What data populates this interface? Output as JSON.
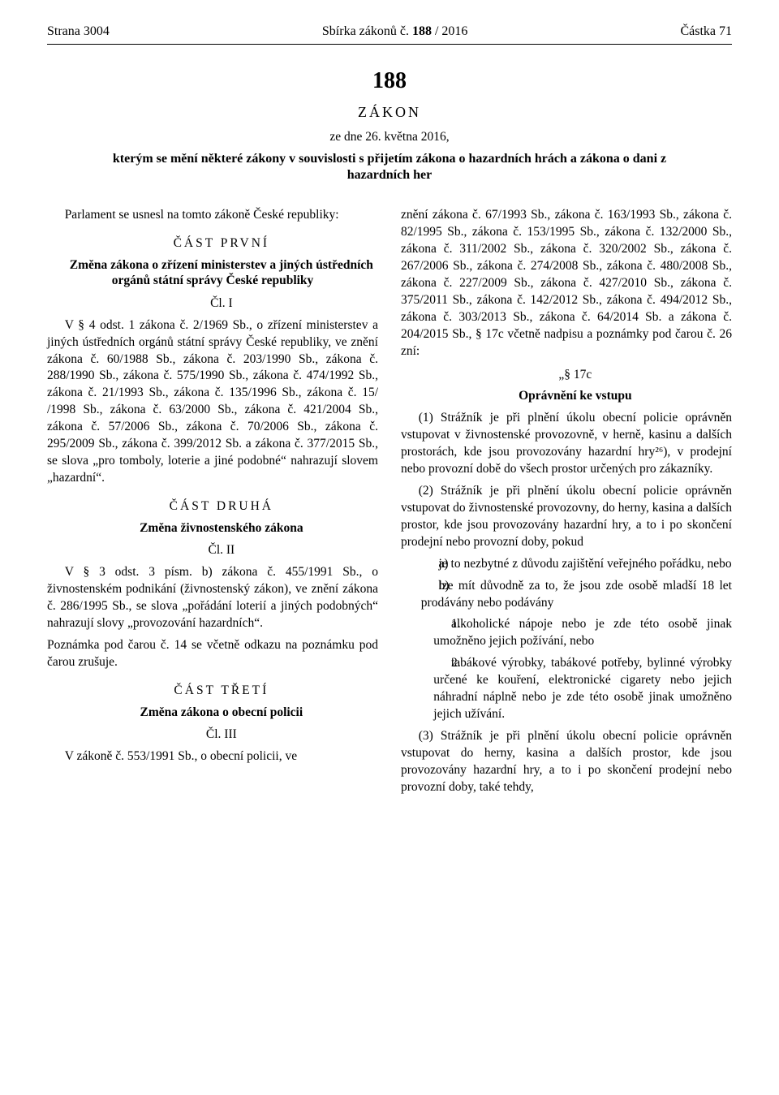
{
  "header": {
    "page_label": "Strana 3004",
    "center": "Sbírka zákonů č. ",
    "center_num": "188",
    "center_year": " / 2016",
    "issue": "Částka 71"
  },
  "title": {
    "number": "188",
    "type": "ZÁKON",
    "date": "ze dne 26. května 2016,",
    "title": "kterým se mění některé zákony v souvislosti s přijetím zákona o hazardních hrách a zákona o dani z hazardních her"
  },
  "left": {
    "preamble": "Parlament se usnesl na tomto zákoně České republiky:",
    "part1_heading": "ČÁST PRVNÍ",
    "part1_subtitle": "Změna zákona o zřízení ministerstev a jiných ústředních orgánů státní správy České republiky",
    "art1": "Čl. I",
    "p1": "V § 4 odst. 1 zákona č. 2/1969 Sb., o zřízení ministerstev a jiných ústředních orgánů státní správy České republiky, ve znění zákona č. 60/1988 Sb., zákona č. 203/1990 Sb., zákona č. 288/1990 Sb., zákona č. 575/1990 Sb., zákona č. 474/1992 Sb., zákona č. 21/1993 Sb., zákona č. 135/1996 Sb., zákona č. 15/ /1998 Sb., zákona č. 63/2000 Sb., zákona č. 421/2004 Sb., zákona č. 57/2006 Sb., zákona č. 70/2006 Sb., zákona č. 295/2009 Sb., zákona č. 399/2012 Sb. a zákona č. 377/2015 Sb., se slova „pro tomboly, loterie a jiné podobné“ nahrazují slovem „hazardní“.",
    "part2_heading": "ČÁST DRUHÁ",
    "part2_subtitle": "Změna živnostenského zákona",
    "art2": "Čl. II",
    "p2": "V § 3 odst. 3 písm. b) zákona č. 455/1991 Sb., o živnostenském podnikání (živnostenský zákon), ve znění zákona č. 286/1995 Sb., se slova „pořádání loterií a jiných podobných“ nahrazují slovy „provozování hazardních“.",
    "p3": "Poznámka pod čarou č. 14 se včetně odkazu na poznámku pod čarou zrušuje.",
    "part3_heading": "ČÁST TŘETÍ",
    "part3_subtitle": "Změna zákona o obecní policii",
    "art3": "Čl. III",
    "p4": "V zákoně č. 553/1991 Sb., o obecní policii, ve"
  },
  "right": {
    "p1": "znění zákona č. 67/1993 Sb., zákona č. 163/1993 Sb., zákona č. 82/1995 Sb., zákona č. 153/1995 Sb., zákona č. 132/2000 Sb., zákona č. 311/2002 Sb., zákona č. 320/2002 Sb., zákona č. 267/2006 Sb., zákona č. 274/2008 Sb., zákona č. 480/2008 Sb., zákona č. 227/2009 Sb., zákona č. 427/2010 Sb., zákona č. 375/2011 Sb., zákona č. 142/2012 Sb., zákona č. 494/2012 Sb., zákona č. 303/2013 Sb., zákona č. 64/2014 Sb. a zákona č. 204/2015 Sb., § 17c včetně nadpisu a poznámky pod čarou č. 26 zní:",
    "sec_head": "„§ 17c",
    "sec_title": "Oprávnění ke vstupu",
    "p2": "(1) Strážník je při plnění úkolu obecní policie oprávněn vstupovat v živnostenské provozovně, v herně, kasinu a dalších prostorách, kde jsou provozovány hazardní hry²⁶), v prodejní nebo provozní době do všech prostor určených pro zákazníky.",
    "p3": "(2) Strážník je při plnění úkolu obecní policie oprávněn vstupovat do živnostenské provozovny, do herny, kasina a dalších prostor, kde jsou provozovány hazardní hry, a to i po skončení prodejní nebo provozní doby, pokud",
    "a_marker": "a)",
    "a_text": "je to nezbytné z důvodu zajištění veřejného pořádku, nebo",
    "b_marker": "b)",
    "b_text": "lze mít důvodně za to, že jsou zde osobě mladší 18 let prodávány nebo podávány",
    "n1_marker": "1.",
    "n1_text": "alkoholické nápoje nebo je zde této osobě jinak umožněno jejich požívání, nebo",
    "n2_marker": "2.",
    "n2_text": "tabákové výrobky, tabákové potřeby, bylinné výrobky určené ke kouření, elektronické cigarety nebo jejich náhradní náplně nebo je zde této osobě jinak umožněno jejich užívání.",
    "p4": "(3) Strážník je při plnění úkolu obecní policie oprávněn vstupovat do herny, kasina a dalších prostor, kde jsou provozovány hazardní hry, a to i po skončení prodejní nebo provozní doby, také tehdy,"
  }
}
